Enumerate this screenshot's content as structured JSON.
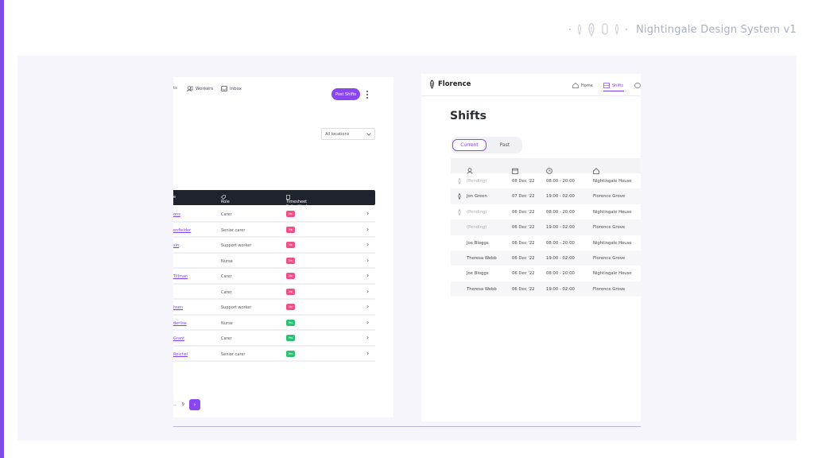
{
  "brand": {
    "title": "Nightingale Design System v1",
    "icons": [
      "dot-icon",
      "pin-icon",
      "lamp-icon",
      "lamp-outline-icon",
      "pin-icon",
      "dot-icon"
    ]
  },
  "left_panel": {
    "nav": {
      "shifts_partial": "ts",
      "workers": "Workers",
      "inbox": "Inbox",
      "post_shifts": "Post Shifts"
    },
    "location_select": "All locations",
    "table": {
      "headers": {
        "role": "Role",
        "timesheet": "Timesheet Submitted"
      },
      "rows": [
        {
          "name": "ons",
          "role": "Carer",
          "status": "No"
        },
        {
          "name": "enfielder",
          "role": "Senior carer",
          "status": "No"
        },
        {
          "name": "sin",
          "role": "Support worker",
          "status": "No"
        },
        {
          "name": "",
          "role": "Nurse",
          "status": "No"
        },
        {
          "name": "Tillman",
          "role": "Carer",
          "status": "No"
        },
        {
          "name": "",
          "role": "Carer",
          "status": "No"
        },
        {
          "name": "hsen",
          "role": "Support worker",
          "status": "No"
        },
        {
          "name": "derlise",
          "role": "Nurse",
          "status": "Yes"
        },
        {
          "name": "Grant",
          "role": "Carer",
          "status": "Yes"
        },
        {
          "name": "Reichel",
          "role": "Senior carer",
          "status": "Yes"
        }
      ]
    },
    "pager": {
      "ellipsis": "...",
      "last": "9",
      "next": "›"
    }
  },
  "right_panel": {
    "logo": "Florence",
    "nav": {
      "home": "Home",
      "shifts": "Shifts"
    },
    "title": "Shifts",
    "tabs": {
      "current": "Current",
      "past": "Past"
    },
    "shifts": [
      {
        "worker": "(Pending)",
        "pending": true,
        "pin": true,
        "date": "08 Dec '22",
        "time": "08:00 - 20:00",
        "location": "Nightingale House"
      },
      {
        "worker": "Jon Green",
        "pending": false,
        "pin": true,
        "date": "07 Dec '22",
        "time": "19:00 - 02:00",
        "location": "Florence Grove"
      },
      {
        "worker": "(Pending)",
        "pending": true,
        "pin": true,
        "date": "06 Dec '22",
        "time": "08:00 - 20:00",
        "location": "Nightingale House"
      },
      {
        "worker": "(Pending)",
        "pending": true,
        "pin": false,
        "date": "06 Dec '22",
        "time": "19:00 - 02:00",
        "location": "Florence Grove"
      },
      {
        "worker": "Joe Bloggs",
        "pending": false,
        "pin": false,
        "date": "06 Dec '22",
        "time": "08:00 - 20:00",
        "location": "Nightingale House"
      },
      {
        "worker": "Theresa Webb",
        "pending": false,
        "pin": false,
        "date": "06 Dec '22",
        "time": "19:00 - 02:00",
        "location": "Florence Grove"
      },
      {
        "worker": "Joe Bloggs",
        "pending": false,
        "pin": false,
        "date": "06 Dec '22",
        "time": "08:00 - 20:00",
        "location": "Nightingale House"
      },
      {
        "worker": "Theresa Webb",
        "pending": false,
        "pin": false,
        "date": "06 Dec '22",
        "time": "19:00 - 02:00",
        "location": "Florence Grove"
      }
    ]
  },
  "colors": {
    "accent": "#8a47f0",
    "dark_header": "#1f232e",
    "no_badge": "#f0508a",
    "yes_badge": "#2fbf71",
    "stage_bg": "#f6f5fc"
  }
}
